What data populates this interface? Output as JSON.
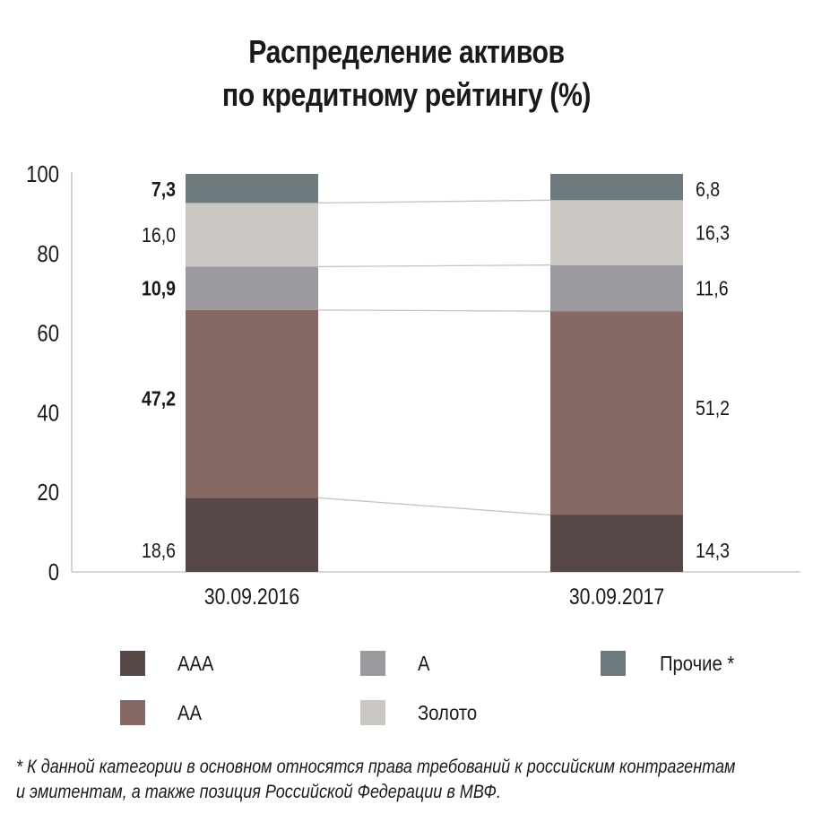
{
  "title_line1": "Распределение активов",
  "title_line2": "по кредитному рейтингу (%)",
  "chart_data": {
    "type": "bar",
    "stacked": true,
    "categories": [
      "30.09.2016",
      "30.09.2017"
    ],
    "series": [
      {
        "name": "AAA",
        "values": [
          18.6,
          14.3
        ],
        "labels": [
          "18,6",
          "14,3"
        ],
        "color": "#574746"
      },
      {
        "name": "AA",
        "values": [
          47.2,
          51.2
        ],
        "labels": [
          "47,2",
          "51,2"
        ],
        "color": "#866965"
      },
      {
        "name": "A",
        "values": [
          10.9,
          11.6
        ],
        "labels": [
          "10,9",
          "11,6"
        ],
        "color": "#9c9a9e"
      },
      {
        "name": "Золото",
        "values": [
          16.0,
          16.3
        ],
        "labels": [
          "16,0",
          "16,3"
        ],
        "color": "#cbc8c3"
      },
      {
        "name": "Прочие *",
        "values": [
          7.3,
          6.8
        ],
        "labels": [
          "7,3",
          "6,8"
        ],
        "color": "#6f7a7e"
      }
    ],
    "yticks": [
      "0",
      "20",
      "40",
      "60",
      "80",
      "100"
    ],
    "ylim": [
      0,
      100
    ],
    "grid": false,
    "legend_position": "bottom"
  },
  "footnote_line1": "* К данной категории в основном относятся права требований к российским контрагентам",
  "footnote_line2": "и эмитентам, а также позиция Российской Федерации в МВФ."
}
